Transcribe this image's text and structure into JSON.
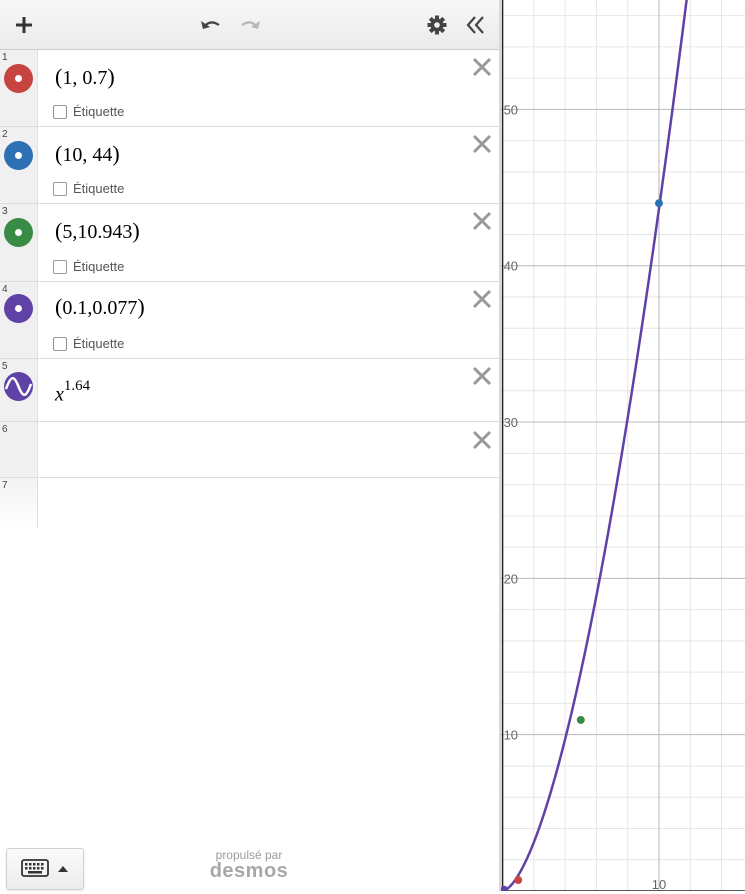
{
  "toolbar": {
    "add_icon": "plus-icon",
    "undo_icon": "undo-icon",
    "redo_icon": "redo-icon",
    "settings_icon": "gear-icon",
    "collapse_icon": "double-chevron-left-icon"
  },
  "expressions": [
    {
      "num": "1",
      "type": "point",
      "color": "#c74440",
      "open": "(",
      "text": "1, 0.7",
      "close": ")",
      "label": "Étiquette"
    },
    {
      "num": "2",
      "type": "point",
      "color": "#2d70b3",
      "open": "(",
      "text": "10, 44",
      "close": ")",
      "label": "Étiquette"
    },
    {
      "num": "3",
      "type": "point",
      "color": "#388c46",
      "open": "(",
      "text": "5,10.943",
      "close": ")",
      "label": "Étiquette"
    },
    {
      "num": "4",
      "type": "point",
      "color": "#6042a6",
      "open": "(",
      "text": "0.1,0.077",
      "close": ")",
      "label": "Étiquette"
    },
    {
      "num": "5",
      "type": "function",
      "color": "#6042a6",
      "base": "x",
      "exponent": "1.64"
    },
    {
      "num": "6",
      "type": "empty"
    },
    {
      "num": "7",
      "type": "new"
    }
  ],
  "graph": {
    "x_range": [
      -0.1,
      15.5
    ],
    "y_range": [
      0,
      57
    ],
    "x_tick_labels": [
      "10"
    ],
    "y_tick_labels": [
      "10",
      "20",
      "30",
      "40",
      "50"
    ],
    "curve_color": "#6042a6",
    "curve_label": "x^1.64",
    "points": [
      {
        "x": 1,
        "y": 0.7,
        "color": "#c74440"
      },
      {
        "x": 10,
        "y": 44,
        "color": "#2d70b3"
      },
      {
        "x": 5,
        "y": 10.943,
        "color": "#388c46"
      },
      {
        "x": 0.1,
        "y": 0.077,
        "color": "#6042a6"
      }
    ]
  },
  "footer": {
    "keyboard_icon": "keyboard-icon",
    "powered_by": "propulsé par",
    "brand": "desmos"
  }
}
